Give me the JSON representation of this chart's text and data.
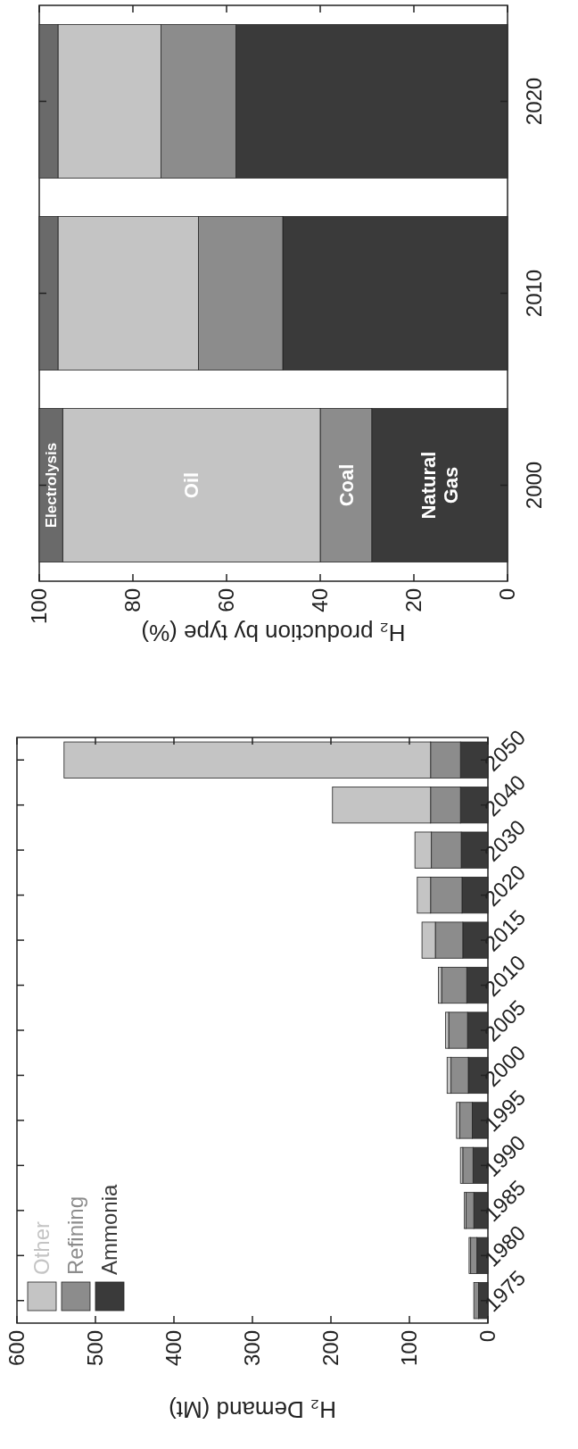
{
  "chart_data": [
    {
      "type": "bar",
      "stacked": true,
      "orientation": "horizontal",
      "xlabel": "H₂ Demand (Mt)",
      "categories": [
        "2050",
        "2040",
        "2030",
        "2020",
        "2015",
        "2010",
        "2005",
        "2000",
        "1995",
        "1990",
        "1985",
        "1980",
        "1975"
      ],
      "xlim": [
        600,
        0
      ],
      "xticks": [
        600,
        500,
        400,
        300,
        200,
        100,
        0
      ],
      "legend": "bottom left",
      "series": [
        {
          "name": "Ammonia",
          "color": "#3a3a3a",
          "values": [
            35,
            35,
            34,
            33,
            32,
            27,
            26,
            25,
            20,
            19,
            18,
            14,
            12
          ]
        },
        {
          "name": "Refining",
          "color": "#8c8c8c",
          "values": [
            38,
            38,
            38,
            40,
            35,
            32,
            24,
            22,
            16,
            13,
            10,
            8,
            6
          ]
        },
        {
          "name": "Other",
          "color": "#c4c4c4",
          "values": [
            467,
            125,
            21,
            17,
            17,
            4,
            4,
            5,
            4,
            3,
            2,
            2,
            0
          ]
        }
      ]
    },
    {
      "type": "bar",
      "stacked": true,
      "orientation": "horizontal",
      "xlabel": "H₂ production by type (%)",
      "categories": [
        "2020",
        "2010",
        "2000"
      ],
      "xlim": [
        100,
        0
      ],
      "xticks": [
        100,
        80,
        60,
        40,
        20,
        0
      ],
      "series": [
        {
          "name": "Natural Gas",
          "color": "#3a3a3a",
          "values": [
            58,
            48,
            29
          ]
        },
        {
          "name": "Coal",
          "color": "#8c8c8c",
          "values": [
            16,
            18,
            11
          ]
        },
        {
          "name": "Oil",
          "color": "#c4c4c4",
          "values": [
            22,
            30,
            55
          ]
        },
        {
          "name": "Electrolysis",
          "color": "#6a6a6a",
          "values": [
            4,
            4,
            5
          ]
        }
      ]
    }
  ]
}
